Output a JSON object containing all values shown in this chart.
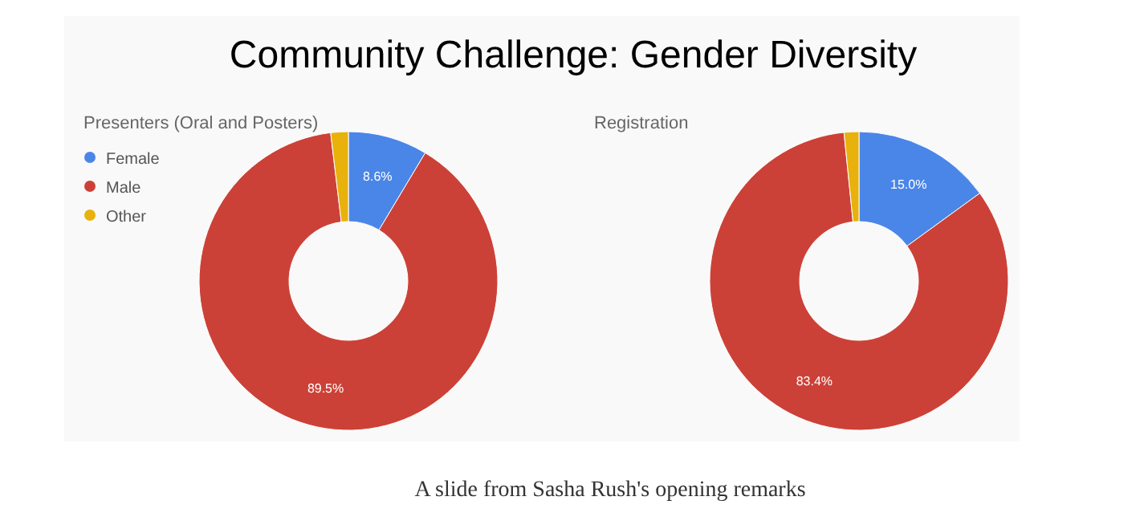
{
  "chart_data": [
    {
      "type": "donut",
      "title": "Community Challenge: Gender Diversity",
      "subtitle": "Presenters (Oral and Posters)",
      "categories": [
        "Female",
        "Male",
        "Other"
      ],
      "values": [
        8.6,
        89.5,
        1.9
      ],
      "colors": [
        "#4a86e8",
        "#cc4137",
        "#e8b10c"
      ],
      "value_labels": [
        "8.6%",
        "89.5%",
        null
      ],
      "legend": "top left",
      "annotations": [
        "A slide from Sasha Rush's opening remarks"
      ]
    },
    {
      "type": "donut",
      "title": "Registration",
      "categories": [
        null,
        null,
        null
      ],
      "values": [
        15.0,
        83.4,
        1.6
      ],
      "colors": [
        "#4a86e8",
        "#cc4137",
        "#e8b10c"
      ],
      "value_labels": [
        "15.0%",
        "83.4%",
        null
      ],
      "legend": false
    }
  ]
}
